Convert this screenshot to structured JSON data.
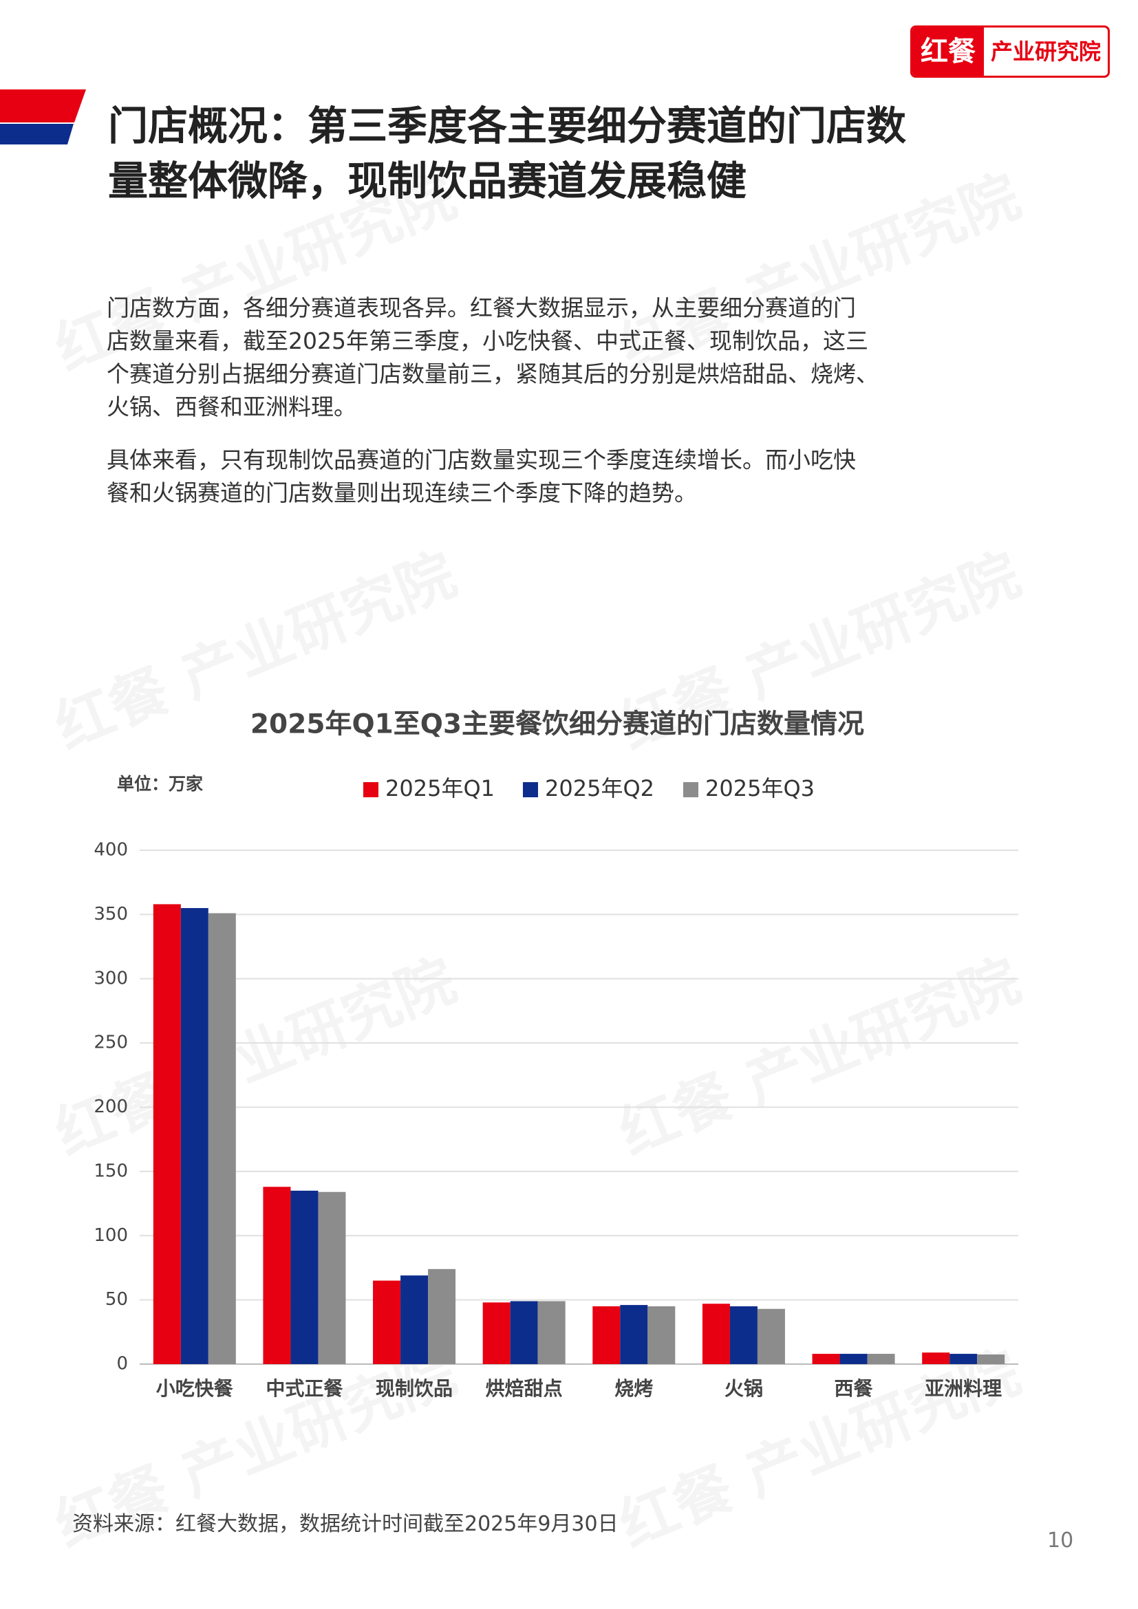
{
  "header": {
    "logo_brand": "红餐",
    "logo_subtitle": "产业研究院",
    "title_lines": [
      "门店概况：第三季度各主要细分赛道的门店数",
      "量整体微降，现制饮品赛道发展稳健"
    ]
  },
  "watermark": "红餐 产业研究院",
  "paragraphs": [
    [
      "门店数方面，各细分赛道表现各异。红餐大数据显示，从主要细分赛道的门",
      "店数量来看，截至2025年第三季度，小吃快餐、中式正餐、现制饮品，这三",
      "个赛道分别占据细分赛道门店数量前三，紧随其后的分别是烘焙甜品、烧烤、",
      "火锅、西餐和亚洲料理。"
    ],
    [
      "具体来看，只有现制饮品赛道的门店数量实现三个季度连续增长。而小吃快",
      "餐和火锅赛道的门店数量则出现连续三个季度下降的趋势。"
    ]
  ],
  "chart_data": {
    "type": "bar",
    "title": "2025年Q1至Q3主要餐饮细分赛道的门店数量情况",
    "unit_label": "单位：万家",
    "categories": [
      "小吃快餐",
      "中式正餐",
      "现制饮品",
      "烘焙甜点",
      "烧烤",
      "火锅",
      "西餐",
      "亚洲料理"
    ],
    "series": [
      {
        "name": "2025年Q1",
        "color": "#e60012",
        "values": [
          358,
          138,
          65,
          48,
          45,
          47,
          8,
          9
        ]
      },
      {
        "name": "2025年Q2",
        "color": "#0d2d8c",
        "values": [
          355,
          135,
          69,
          49,
          46,
          45,
          8,
          8
        ]
      },
      {
        "name": "2025年Q3",
        "color": "#8c8c8c",
        "values": [
          351,
          134,
          74,
          49,
          45,
          43,
          8,
          7.5
        ]
      }
    ],
    "ylim": [
      0,
      400
    ],
    "yticks": [
      0,
      50,
      100,
      150,
      200,
      250,
      300,
      350,
      400
    ],
    "grid": true,
    "legend": "top"
  },
  "source": "资料来源：红餐大数据，数据统计时间截至2025年9月30日",
  "page_number": "10"
}
